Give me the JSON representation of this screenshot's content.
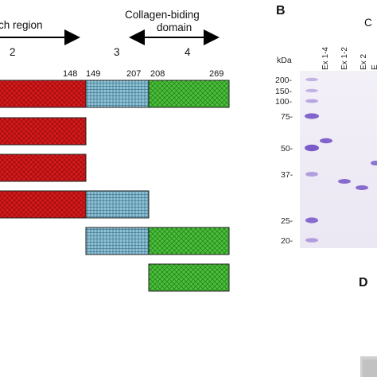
{
  "left_panel": {
    "region_left_title": "ch region",
    "region_right_title_line1": "Collagen-biding",
    "region_right_title_line2": "domain",
    "exon_numbers": [
      "2",
      "3",
      "4"
    ],
    "residue_labels": [
      "148",
      "149",
      "207",
      "208",
      "269"
    ],
    "colors": {
      "red": "#d7191c",
      "blue": "#8fc3d6",
      "green": "#4cbf3a"
    }
  },
  "right_panel": {
    "panel_label_b": "B",
    "panel_label_c_partial": "C",
    "panel_label_d": "D",
    "unit_label": "kDa",
    "mw_markers": [
      "200-",
      "150-",
      "100-",
      "75-",
      "50-",
      "37-",
      "25-",
      "20-"
    ],
    "lanes": [
      "Ex 1-4",
      "Ex 1-2",
      "Ex 2",
      "E"
    ]
  }
}
